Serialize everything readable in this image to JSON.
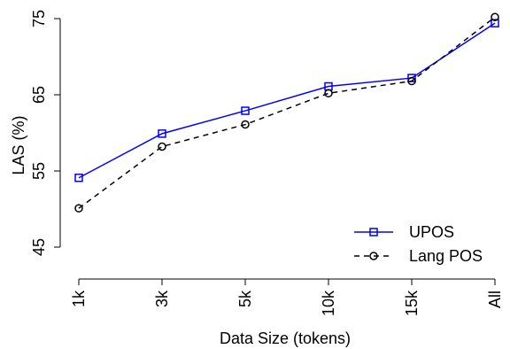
{
  "chart_data": {
    "type": "line",
    "categories": [
      "1k",
      "3k",
      "5k",
      "10k",
      "15k",
      "All"
    ],
    "xlabel": "Data Size (tokens)",
    "ylabel": "LAS (%)",
    "ylim": [
      40.5,
      77
    ],
    "yticks": [
      45,
      55,
      65,
      75
    ],
    "grid": false,
    "legend_position": "bottom-right",
    "series": [
      {
        "name": "UPOS",
        "values": [
          54.1,
          59.9,
          62.9,
          66.1,
          67.2,
          74.4
        ],
        "color": "#0000ff",
        "marker": "square",
        "line_style": "solid"
      },
      {
        "name": "Lang POS",
        "values": [
          50.1,
          58.2,
          61.1,
          65.2,
          66.8,
          75.2
        ],
        "color": "#000000",
        "marker": "circle",
        "line_style": "dashed"
      }
    ]
  }
}
